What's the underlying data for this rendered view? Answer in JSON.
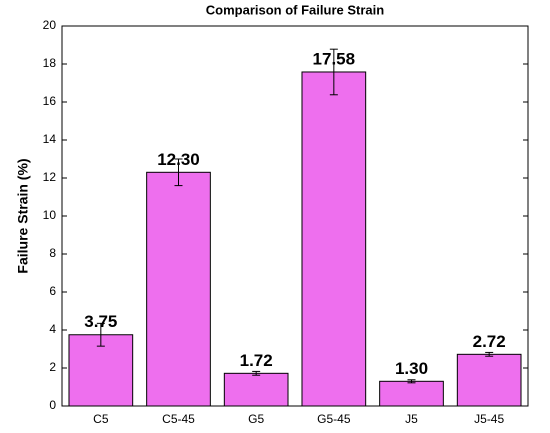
{
  "chart_data": {
    "type": "bar",
    "title": "Comparison of Failure Strain",
    "y_label": "Failure Strain (%)",
    "categories": [
      "C5",
      "C5-45",
      "G5",
      "G5-45",
      "J5",
      "J5-45"
    ],
    "values": [
      3.75,
      12.3,
      1.72,
      17.58,
      1.3,
      2.72
    ],
    "value_labels": [
      "3.75",
      "12.30",
      "1.72",
      "17.58",
      "1.30",
      "2.72"
    ],
    "errors": [
      0.6,
      0.7,
      0.1,
      1.2,
      0.08,
      0.1
    ],
    "color": "#ee6fee",
    "ylim": [
      0,
      20
    ],
    "yticks": [
      0,
      2,
      4,
      6,
      8,
      10,
      12,
      14,
      16,
      18,
      20
    ],
    "grid": false
  }
}
